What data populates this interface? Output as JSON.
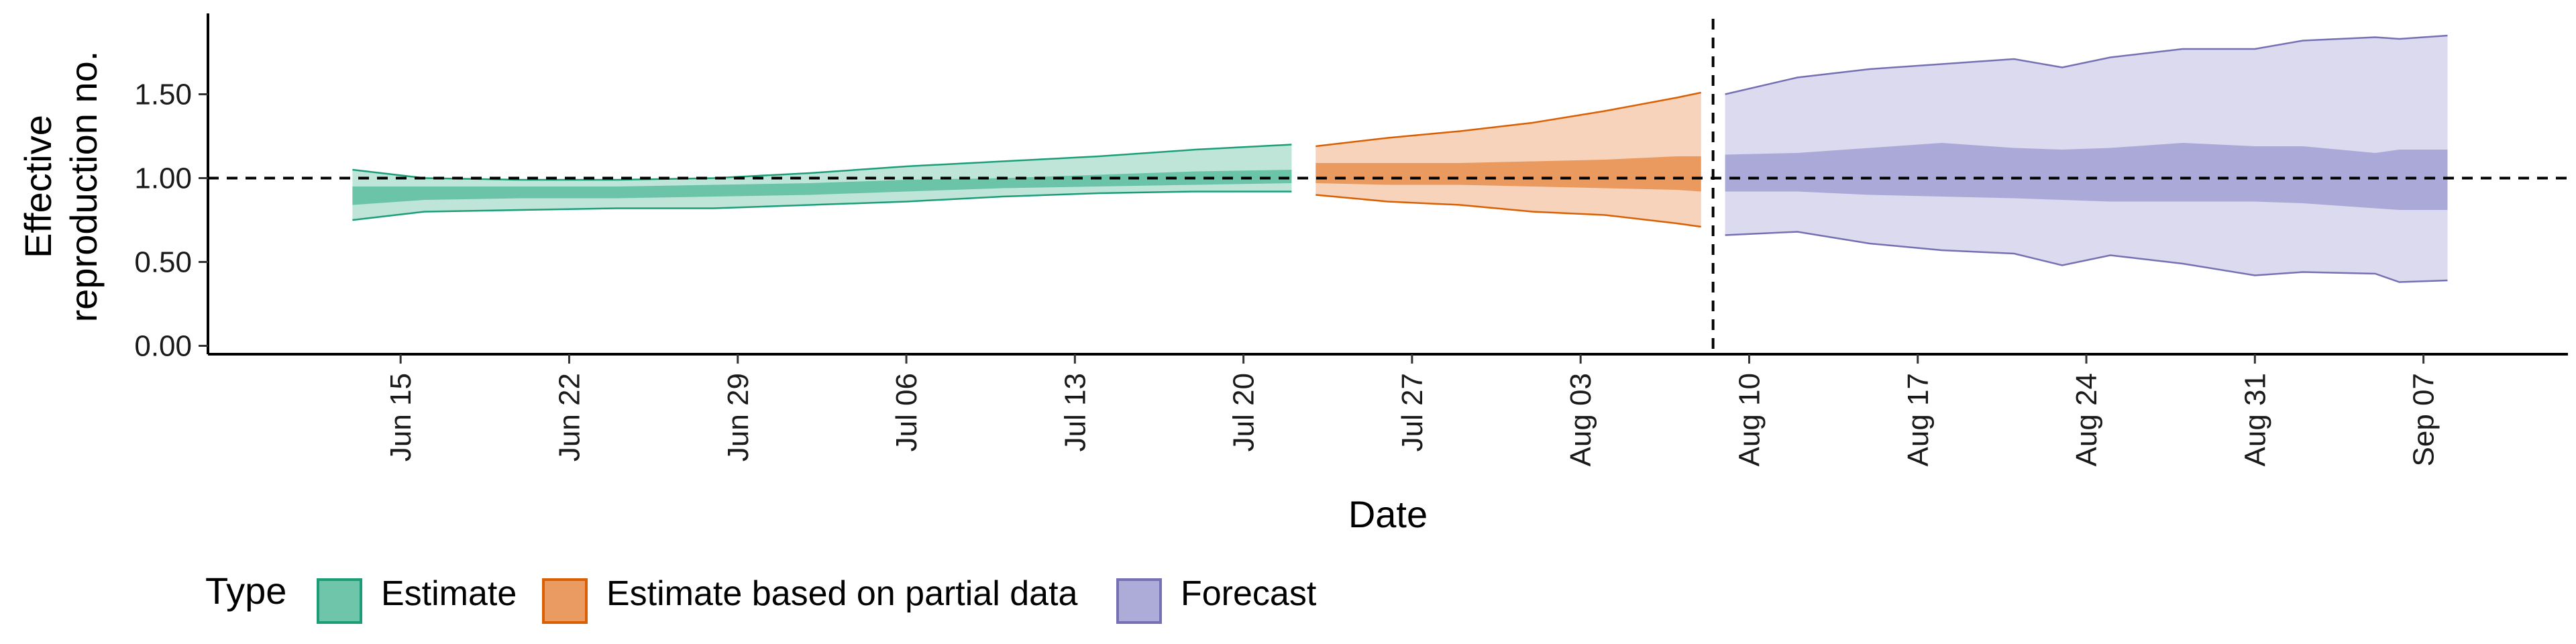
{
  "chart_data": {
    "type": "area",
    "xlabel": "Date",
    "ylabel_lines": [
      "Effective",
      "reproduction no."
    ],
    "ylim": [
      -0.05,
      1.95
    ],
    "yticks": [
      0.0,
      0.5,
      1.0,
      1.5
    ],
    "ytick_labels": [
      "0.00",
      "0.50",
      "1.00",
      "1.50"
    ],
    "xlim": [
      "2020-06-07",
      "2020-09-13"
    ],
    "xticks": [
      "2020-06-15",
      "2020-06-22",
      "2020-06-29",
      "2020-07-06",
      "2020-07-13",
      "2020-07-20",
      "2020-07-27",
      "2020-08-03",
      "2020-08-10",
      "2020-08-17",
      "2020-08-24",
      "2020-08-31",
      "2020-09-07"
    ],
    "xtick_labels": [
      "Jun 15",
      "Jun 22",
      "Jun 29",
      "Jul 06",
      "Jul 13",
      "Jul 20",
      "Jul 27",
      "Aug 03",
      "Aug 10",
      "Aug 17",
      "Aug 24",
      "Aug 31",
      "Sep 07"
    ],
    "reference_lines": {
      "horizontal_y": 1.0,
      "vertical_date": "2020-08-09",
      "style": "dashed"
    },
    "legend": {
      "title": "Type",
      "placement": "bottom-left",
      "entries": [
        "Estimate",
        "Estimate based on partial data",
        "Forecast"
      ]
    },
    "series": [
      {
        "name": "Estimate",
        "fill": "#66c2a5",
        "edge": "#1b9e77",
        "points": [
          {
            "date": "2020-06-13",
            "lower_90": 0.75,
            "lower_50": 0.84,
            "upper_50": 0.95,
            "upper_90": 1.05
          },
          {
            "date": "2020-06-16",
            "lower_90": 0.8,
            "lower_50": 0.87,
            "upper_50": 0.95,
            "upper_90": 1.0
          },
          {
            "date": "2020-06-20",
            "lower_90": 0.81,
            "lower_50": 0.88,
            "upper_50": 0.95,
            "upper_90": 0.99
          },
          {
            "date": "2020-06-24",
            "lower_90": 0.82,
            "lower_50": 0.88,
            "upper_50": 0.95,
            "upper_90": 0.99
          },
          {
            "date": "2020-06-28",
            "lower_90": 0.82,
            "lower_50": 0.89,
            "upper_50": 0.96,
            "upper_90": 1.0
          },
          {
            "date": "2020-07-02",
            "lower_90": 0.84,
            "lower_50": 0.9,
            "upper_50": 0.97,
            "upper_90": 1.03
          },
          {
            "date": "2020-07-06",
            "lower_90": 0.86,
            "lower_50": 0.92,
            "upper_50": 0.99,
            "upper_90": 1.07
          },
          {
            "date": "2020-07-10",
            "lower_90": 0.89,
            "lower_50": 0.94,
            "upper_50": 1.0,
            "upper_90": 1.1
          },
          {
            "date": "2020-07-14",
            "lower_90": 0.91,
            "lower_50": 0.95,
            "upper_50": 1.02,
            "upper_90": 1.13
          },
          {
            "date": "2020-07-18",
            "lower_90": 0.92,
            "lower_50": 0.96,
            "upper_50": 1.04,
            "upper_90": 1.17
          },
          {
            "date": "2020-07-22",
            "lower_90": 0.92,
            "lower_50": 0.97,
            "upper_50": 1.05,
            "upper_90": 1.2
          }
        ]
      },
      {
        "name": "Estimate based on partial data",
        "fill": "#e9965a",
        "edge": "#d95f02",
        "points": [
          {
            "date": "2020-07-23",
            "lower_90": 0.9,
            "lower_50": 0.97,
            "upper_50": 1.09,
            "upper_90": 1.19
          },
          {
            "date": "2020-07-26",
            "lower_90": 0.86,
            "lower_50": 0.96,
            "upper_50": 1.09,
            "upper_90": 1.24
          },
          {
            "date": "2020-07-29",
            "lower_90": 0.84,
            "lower_50": 0.96,
            "upper_50": 1.09,
            "upper_90": 1.28
          },
          {
            "date": "2020-08-01",
            "lower_90": 0.8,
            "lower_50": 0.95,
            "upper_50": 1.1,
            "upper_90": 1.33
          },
          {
            "date": "2020-08-04",
            "lower_90": 0.78,
            "lower_50": 0.94,
            "upper_50": 1.11,
            "upper_90": 1.4
          },
          {
            "date": "2020-08-07",
            "lower_90": 0.73,
            "lower_50": 0.93,
            "upper_50": 1.13,
            "upper_90": 1.48
          },
          {
            "date": "2020-08-08",
            "lower_90": 0.71,
            "lower_50": 0.92,
            "upper_50": 1.13,
            "upper_90": 1.51
          }
        ]
      },
      {
        "name": "Forecast",
        "fill": "#a9a6d6",
        "edge": "#7570b3",
        "points": [
          {
            "date": "2020-08-09",
            "lower_90": 0.66,
            "lower_50": 0.92,
            "upper_50": 1.14,
            "upper_90": 1.5
          },
          {
            "date": "2020-08-12",
            "lower_90": 0.68,
            "lower_50": 0.92,
            "upper_50": 1.15,
            "upper_90": 1.6
          },
          {
            "date": "2020-08-15",
            "lower_90": 0.61,
            "lower_50": 0.9,
            "upper_50": 1.18,
            "upper_90": 1.65
          },
          {
            "date": "2020-08-18",
            "lower_90": 0.57,
            "lower_50": 0.89,
            "upper_50": 1.21,
            "upper_90": 1.68
          },
          {
            "date": "2020-08-21",
            "lower_90": 0.55,
            "lower_50": 0.88,
            "upper_50": 1.18,
            "upper_90": 1.71
          },
          {
            "date": "2020-08-23",
            "lower_90": 0.48,
            "lower_50": 0.87,
            "upper_50": 1.17,
            "upper_90": 1.66
          },
          {
            "date": "2020-08-25",
            "lower_90": 0.54,
            "lower_50": 0.86,
            "upper_50": 1.18,
            "upper_90": 1.72
          },
          {
            "date": "2020-08-28",
            "lower_90": 0.49,
            "lower_50": 0.86,
            "upper_50": 1.21,
            "upper_90": 1.77
          },
          {
            "date": "2020-08-31",
            "lower_90": 0.42,
            "lower_50": 0.86,
            "upper_50": 1.19,
            "upper_90": 1.77
          },
          {
            "date": "2020-09-02",
            "lower_90": 0.44,
            "lower_50": 0.85,
            "upper_50": 1.19,
            "upper_90": 1.82
          },
          {
            "date": "2020-09-05",
            "lower_90": 0.43,
            "lower_50": 0.82,
            "upper_50": 1.15,
            "upper_90": 1.84
          },
          {
            "date": "2020-09-06",
            "lower_90": 0.38,
            "lower_50": 0.81,
            "upper_50": 1.17,
            "upper_90": 1.83
          },
          {
            "date": "2020-09-08",
            "lower_90": 0.39,
            "lower_50": 0.81,
            "upper_50": 1.17,
            "upper_90": 1.85
          }
        ]
      }
    ]
  }
}
